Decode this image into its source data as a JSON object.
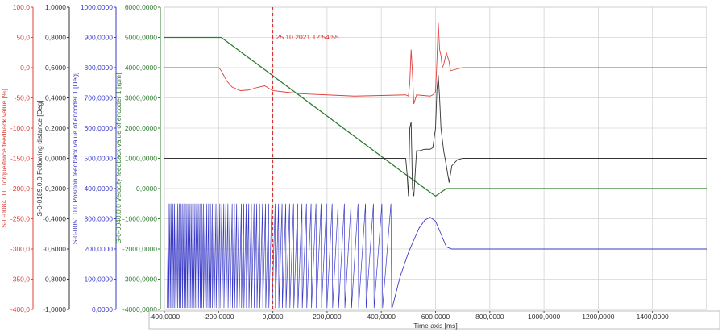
{
  "chart_data": {
    "type": "line",
    "title": "",
    "cursor": {
      "x_ms": 0,
      "label": "25.10.2021 12:54:55"
    },
    "x_axis": {
      "label": "Time axis [ms]",
      "range": [
        -400,
        1600
      ],
      "ticks": [
        -400,
        -200,
        0,
        200,
        400,
        600,
        800,
        1000,
        1200,
        1400
      ],
      "tick_labels": [
        "-400,0000",
        "-200,0000",
        "0,0000",
        "200,0000",
        "400,0000",
        "600,0000",
        "800,0000",
        "1000,0000",
        "1200,0000",
        "1400,0000"
      ]
    },
    "y_axes": [
      {
        "id": "torque",
        "label": "S-0-0084.0.0 Torque/force feedback value [%]",
        "color": "#e0403a",
        "range": [
          -400,
          100
        ],
        "tick_labels": [
          "100,0",
          "50,0",
          "0,0",
          "-50,0",
          "-100,0",
          "-150,0",
          "-200,0",
          "-250,0",
          "-300,0",
          "-350,0",
          "-400,0"
        ]
      },
      {
        "id": "following",
        "label": "S-0-0189.0.0 Following distance [Deg]",
        "color": "#333333",
        "range": [
          -1.0,
          1.0
        ],
        "tick_labels": [
          "1,0000",
          "0,8000",
          "0,6000",
          "0,4000",
          "0,2000",
          "0,0000",
          "-0,2000",
          "-0,4000",
          "-0,6000",
          "-0,8000",
          "-1,0000"
        ]
      },
      {
        "id": "position",
        "label": "S-0-0051.0.0 Position feedback value of encoder 1 [Deg]",
        "color": "#3a3ac8",
        "range": [
          0,
          1000
        ],
        "tick_labels": [
          "1000,0000",
          "900,0000",
          "800,0000",
          "700,0000",
          "600,0000",
          "500,0000",
          "400,0000",
          "300,0000",
          "200,0000",
          "100,0000",
          "0,0000"
        ]
      },
      {
        "id": "velocity",
        "label": "S-0-0040.0.0 Velocity feedback value of encoder 1 [rpm]",
        "color": "#2e7d2e",
        "range": [
          -4000,
          6000
        ],
        "tick_labels": [
          "6000,0000",
          "5000,0000",
          "4000,0000",
          "3000,0000",
          "2000,0000",
          "1000,0000",
          "0,0000",
          "-1000,0000",
          "-2000,0000",
          "-3000,0000",
          "-4000,0000"
        ]
      }
    ],
    "series": [
      {
        "name": "S-0-0040.0.0 Velocity feedback value of encoder 1 [rpm]",
        "axis": "velocity",
        "color": "#2e7d2e",
        "x": [
          -400,
          -190,
          500,
          600,
          640,
          1600
        ],
        "y": [
          5000,
          5000,
          400,
          -250,
          0,
          0
        ]
      },
      {
        "name": "S-0-0084.0.0 Torque/force feedback value [%]",
        "axis": "torque",
        "color": "#e0403a",
        "x": [
          -400,
          -200,
          -190,
          -170,
          -150,
          -120,
          -90,
          -60,
          -30,
          0,
          40,
          100,
          200,
          300,
          400,
          490,
          500,
          505,
          510,
          515,
          520,
          530,
          580,
          590,
          600,
          605,
          610,
          615,
          620,
          625,
          630,
          640,
          650,
          655,
          700,
          800,
          1000,
          1200,
          1400,
          1600
        ],
        "y": [
          0,
          0,
          -5,
          -22,
          -32,
          -38,
          -37,
          -33,
          -30,
          -38,
          -40,
          -43,
          -45,
          -47,
          -46,
          -45,
          -47,
          -25,
          30,
          -10,
          -60,
          -45,
          -47,
          -45,
          -40,
          10,
          75,
          30,
          20,
          0,
          5,
          25,
          10,
          -5,
          0,
          0,
          0,
          0,
          0,
          0
        ]
      },
      {
        "name": "S-0-0189.0.0 Following distance [Deg]",
        "axis": "following",
        "color": "#333333",
        "x": [
          -400,
          480,
          490,
          495,
          500,
          505,
          510,
          515,
          520,
          530,
          540,
          560,
          580,
          590,
          600,
          605,
          610,
          615,
          620,
          630,
          640,
          650,
          660,
          680,
          700,
          800,
          1000,
          1200,
          1400,
          1600
        ],
        "y": [
          0,
          0,
          0,
          -0.1,
          -0.25,
          0.2,
          0.24,
          -0.2,
          -0.25,
          0.05,
          0.05,
          0.06,
          0.06,
          0.07,
          0.2,
          0.45,
          0.55,
          0.4,
          0.2,
          0.05,
          -0.05,
          -0.16,
          -0.05,
          -0.01,
          0,
          0,
          0,
          0,
          0,
          0
        ]
      },
      {
        "name": "S-0-0051.0.0 Position feedback value of encoder 1 [Deg]",
        "axis": "position",
        "color": "#3a3ac8",
        "x_start": -390,
        "sawtooth": {
          "v_high": 350,
          "v_low": 5,
          "start_period_ms": 5.6,
          "end_period_ms": 36,
          "x_end": 440
        },
        "tail_x": [
          440,
          470,
          500,
          520,
          540,
          560,
          580,
          600,
          620,
          640,
          660,
          700,
          800,
          1000,
          1200,
          1400,
          1600
        ],
        "tail_y": [
          5,
          110,
          188,
          230,
          270,
          295,
          305,
          292,
          250,
          207,
          200,
          200,
          200,
          200,
          200,
          200,
          200
        ]
      }
    ],
    "grid": true
  }
}
